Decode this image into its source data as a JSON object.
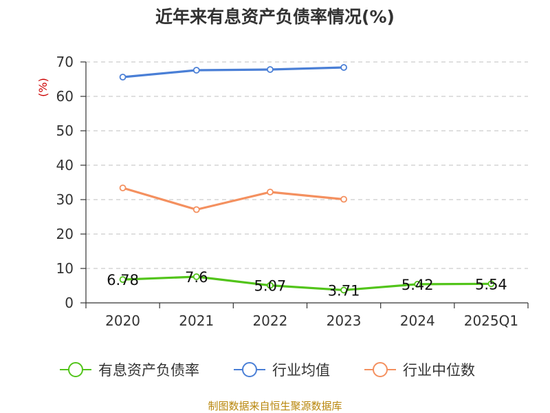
{
  "chart_data": {
    "type": "line",
    "title": "近年来有息资产负债率情况(%)",
    "ylabel": "(%)",
    "xlabel": "",
    "categories": [
      "2020",
      "2021",
      "2022",
      "2023",
      "2024",
      "2025Q1"
    ],
    "ylim": [
      0,
      70
    ],
    "yticks": [
      0,
      10,
      20,
      30,
      40,
      50,
      60,
      70
    ],
    "grid": true,
    "legend_position": "bottom",
    "series": [
      {
        "name": "有息资产负债率",
        "color": "#52c41a",
        "values": [
          6.78,
          7.6,
          5.07,
          3.71,
          5.42,
          5.54
        ],
        "labels": [
          "6.78",
          "7.6",
          "5.07",
          "3.71",
          "5.42",
          "5.54"
        ]
      },
      {
        "name": "行业均值",
        "color": "#4a7fd6",
        "values": [
          65.6,
          67.6,
          67.8,
          68.4,
          null,
          null
        ]
      },
      {
        "name": "行业中位数",
        "color": "#f4905f",
        "values": [
          33.4,
          27.1,
          32.2,
          30.1,
          null,
          null
        ]
      }
    ]
  },
  "source": "制图数据来自恒生聚源数据库"
}
